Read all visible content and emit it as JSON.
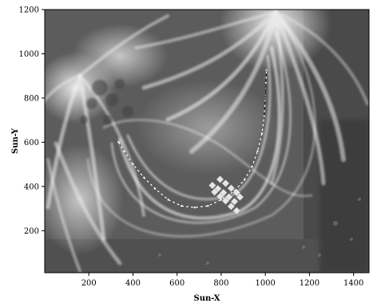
{
  "chart_data": {
    "type": "image",
    "xlabel": "Sun-X",
    "ylabel": "Sun-Y",
    "xlim": [
      0,
      1470
    ],
    "ylim": [
      10,
      1200
    ],
    "xticks": [
      200,
      400,
      600,
      800,
      1000,
      1200,
      1400
    ],
    "yticks": [
      200,
      400,
      600,
      800,
      1000,
      1200
    ],
    "traced_loop": [
      [
        335,
        600
      ],
      [
        360,
        560
      ],
      [
        400,
        500
      ],
      [
        450,
        440
      ],
      [
        500,
        390
      ],
      [
        560,
        340
      ],
      [
        620,
        312
      ],
      [
        680,
        305
      ],
      [
        740,
        312
      ],
      [
        800,
        340
      ],
      [
        860,
        380
      ],
      [
        905,
        430
      ],
      [
        940,
        490
      ],
      [
        965,
        560
      ],
      [
        985,
        640
      ],
      [
        995,
        720
      ],
      [
        1000,
        800
      ],
      [
        1003,
        870
      ],
      [
        1005,
        925
      ]
    ],
    "markers": [
      [
        760,
        405
      ],
      [
        785,
        390
      ],
      [
        810,
        372
      ],
      [
        835,
        352
      ],
      [
        860,
        332
      ],
      [
        795,
        432
      ],
      [
        820,
        414
      ],
      [
        845,
        392
      ],
      [
        870,
        372
      ],
      [
        885,
        352
      ],
      [
        770,
        375
      ],
      [
        795,
        355
      ],
      [
        820,
        335
      ],
      [
        845,
        310
      ],
      [
        870,
        290
      ]
    ],
    "colors": {
      "loop_trace": "#ffffff",
      "marker": "#e6e6e6",
      "axes": "#000000"
    }
  }
}
